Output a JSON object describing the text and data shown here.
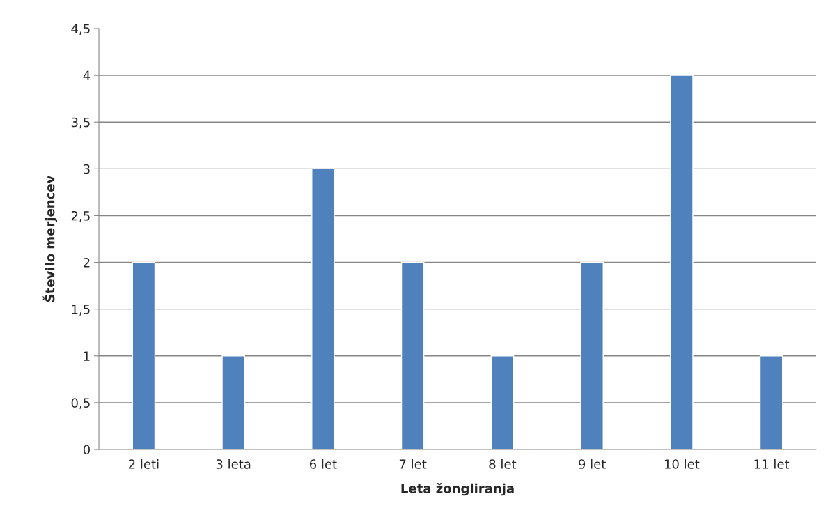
{
  "chart_data": {
    "type": "bar",
    "xlabel": "Leta žongliranja",
    "ylabel": "Število merjencev",
    "categories": [
      "2 leti",
      "3 leta",
      "6 let",
      "7 let",
      "8 let",
      "9 let",
      "10 let",
      "11 let"
    ],
    "values": [
      2,
      1,
      3,
      2,
      1,
      2,
      4,
      1
    ],
    "color": "#4f81bd",
    "ylim": [
      0,
      4.5
    ],
    "yticks": [
      0,
      {
        "value": 0.5,
        "label": "0,5"
      },
      1,
      {
        "value": 1.5,
        "label": "1,5"
      },
      2,
      {
        "value": 2.5,
        "label": "2,5"
      },
      3,
      {
        "value": 3.5,
        "label": "3,5"
      },
      4,
      {
        "value": 4.5,
        "label": "4,5"
      }
    ],
    "grid": "y",
    "legend": false
  }
}
